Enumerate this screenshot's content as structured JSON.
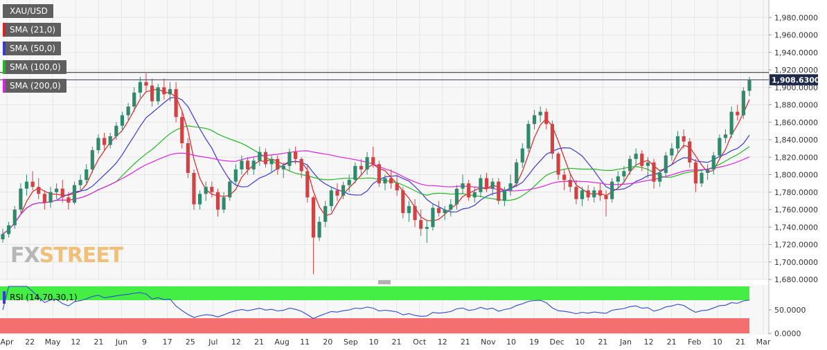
{
  "symbol": "XAU/USD",
  "logo": {
    "left": "FX",
    "right": "STREET"
  },
  "legend": [
    {
      "label": "XAU/USD",
      "color": "#5f5f5f"
    },
    {
      "label": "SMA (21,0)",
      "color": "#e02020"
    },
    {
      "label": "SMA (50,0)",
      "color": "#3a3ad8"
    },
    {
      "label": "SMA (100,0)",
      "color": "#22b822"
    },
    {
      "label": "SMA (200,0)",
      "color": "#e020e0"
    }
  ],
  "colors": {
    "up": "#2f8a6b",
    "down": "#d24242",
    "sma21": "#e02020",
    "sma50": "#3a3ad8",
    "sma100": "#22b822",
    "sma200": "#e020e0",
    "rsi": "#2a4bd0",
    "rsi_overbought": "#44ee44",
    "rsi_oversold": "#f47070",
    "grid": "#e6e6e6"
  },
  "price_axis": {
    "min": 1680,
    "max": 2000,
    "ticks": [
      "1,980.0000",
      "1,960.0000",
      "1,940.0000",
      "1,920.0000",
      "1,900.0000",
      "1,880.0000",
      "1,860.0000",
      "1,840.0000",
      "1,820.0000",
      "1,800.0000",
      "1,780.0000",
      "1,760.0000",
      "1,740.0000",
      "1,720.0000",
      "1,700.0000",
      "1,680.0000"
    ]
  },
  "last_price": {
    "label": "1,908.6300",
    "value": 1908.63
  },
  "resistance_level": 1917,
  "rsi_panel": {
    "label": "RSI (14,70,30,1)",
    "ticks": [
      "50.0000",
      "0.0000"
    ],
    "overbought": 70,
    "oversold": 30
  },
  "x_axis_labels": [
    "Apr",
    "22",
    "May",
    "12",
    "21",
    "Jun",
    "9",
    "17",
    "25",
    "Jul",
    "12",
    "21",
    "Aug",
    "11",
    "20",
    "Sep",
    "10",
    "21",
    "Oct",
    "12",
    "21",
    "Nov",
    "10",
    "19",
    "Dec",
    "10",
    "21",
    "Jan",
    "12",
    "21",
    "Feb",
    "10",
    "21",
    "Mar"
  ],
  "chart_data": {
    "type": "candlestick",
    "title": "XAU/USD",
    "ylim": [
      1680,
      2000
    ],
    "ohlc": [
      [
        1726,
        1738,
        1722,
        1732
      ],
      [
        1732,
        1746,
        1728,
        1742
      ],
      [
        1742,
        1764,
        1738,
        1760
      ],
      [
        1760,
        1790,
        1756,
        1784
      ],
      [
        1784,
        1800,
        1776,
        1792
      ],
      [
        1792,
        1804,
        1782,
        1786
      ],
      [
        1786,
        1796,
        1772,
        1778
      ],
      [
        1778,
        1782,
        1760,
        1768
      ],
      [
        1768,
        1786,
        1762,
        1780
      ],
      [
        1780,
        1790,
        1772,
        1784
      ],
      [
        1784,
        1794,
        1768,
        1774
      ],
      [
        1774,
        1780,
        1760,
        1768
      ],
      [
        1768,
        1792,
        1766,
        1788
      ],
      [
        1788,
        1800,
        1782,
        1794
      ],
      [
        1794,
        1812,
        1790,
        1806
      ],
      [
        1806,
        1832,
        1802,
        1828
      ],
      [
        1828,
        1846,
        1824,
        1842
      ],
      [
        1842,
        1848,
        1828,
        1834
      ],
      [
        1834,
        1848,
        1830,
        1844
      ],
      [
        1844,
        1860,
        1840,
        1856
      ],
      [
        1856,
        1872,
        1850,
        1868
      ],
      [
        1868,
        1882,
        1862,
        1878
      ],
      [
        1878,
        1900,
        1872,
        1894
      ],
      [
        1894,
        1912,
        1888,
        1906
      ],
      [
        1906,
        1916,
        1896,
        1902
      ],
      [
        1902,
        1910,
        1878,
        1884
      ],
      [
        1884,
        1904,
        1880,
        1900
      ],
      [
        1900,
        1910,
        1886,
        1892
      ],
      [
        1892,
        1906,
        1884,
        1898
      ],
      [
        1898,
        1906,
        1860,
        1866
      ],
      [
        1866,
        1872,
        1830,
        1836
      ],
      [
        1836,
        1842,
        1796,
        1802
      ],
      [
        1802,
        1806,
        1760,
        1766
      ],
      [
        1766,
        1782,
        1760,
        1778
      ],
      [
        1778,
        1792,
        1770,
        1786
      ],
      [
        1786,
        1792,
        1774,
        1780
      ],
      [
        1780,
        1784,
        1752,
        1760
      ],
      [
        1760,
        1780,
        1756,
        1774
      ],
      [
        1774,
        1796,
        1770,
        1792
      ],
      [
        1792,
        1812,
        1788,
        1806
      ],
      [
        1806,
        1822,
        1800,
        1816
      ],
      [
        1816,
        1820,
        1800,
        1806
      ],
      [
        1806,
        1820,
        1800,
        1816
      ],
      [
        1816,
        1832,
        1810,
        1826
      ],
      [
        1826,
        1830,
        1808,
        1812
      ],
      [
        1812,
        1822,
        1802,
        1818
      ],
      [
        1818,
        1822,
        1800,
        1806
      ],
      [
        1806,
        1814,
        1796,
        1810
      ],
      [
        1810,
        1830,
        1804,
        1826
      ],
      [
        1826,
        1832,
        1812,
        1818
      ],
      [
        1818,
        1820,
        1796,
        1804
      ],
      [
        1804,
        1812,
        1768,
        1774
      ],
      [
        1774,
        1776,
        1686,
        1728
      ],
      [
        1728,
        1752,
        1724,
        1746
      ],
      [
        1746,
        1770,
        1740,
        1764
      ],
      [
        1764,
        1786,
        1758,
        1782
      ],
      [
        1782,
        1790,
        1770,
        1776
      ],
      [
        1776,
        1792,
        1772,
        1788
      ],
      [
        1788,
        1800,
        1780,
        1794
      ],
      [
        1794,
        1814,
        1790,
        1810
      ],
      [
        1810,
        1818,
        1798,
        1806
      ],
      [
        1806,
        1826,
        1800,
        1820
      ],
      [
        1820,
        1832,
        1808,
        1812
      ],
      [
        1812,
        1816,
        1786,
        1790
      ],
      [
        1790,
        1800,
        1782,
        1796
      ],
      [
        1796,
        1806,
        1784,
        1790
      ],
      [
        1790,
        1800,
        1776,
        1782
      ],
      [
        1782,
        1786,
        1750,
        1756
      ],
      [
        1756,
        1770,
        1746,
        1764
      ],
      [
        1764,
        1772,
        1740,
        1748
      ],
      [
        1748,
        1760,
        1730,
        1738
      ],
      [
        1738,
        1748,
        1722,
        1740
      ],
      [
        1740,
        1766,
        1736,
        1762
      ],
      [
        1762,
        1770,
        1752,
        1756
      ],
      [
        1756,
        1764,
        1748,
        1760
      ],
      [
        1760,
        1772,
        1752,
        1766
      ],
      [
        1766,
        1788,
        1760,
        1784
      ],
      [
        1784,
        1800,
        1778,
        1790
      ],
      [
        1790,
        1794,
        1770,
        1774
      ],
      [
        1774,
        1786,
        1768,
        1780
      ],
      [
        1780,
        1800,
        1774,
        1796
      ],
      [
        1796,
        1802,
        1780,
        1784
      ],
      [
        1784,
        1796,
        1776,
        1792
      ],
      [
        1792,
        1796,
        1766,
        1770
      ],
      [
        1770,
        1786,
        1764,
        1782
      ],
      [
        1782,
        1800,
        1776,
        1790
      ],
      [
        1790,
        1818,
        1786,
        1814
      ],
      [
        1814,
        1836,
        1808,
        1830
      ],
      [
        1830,
        1862,
        1826,
        1858
      ],
      [
        1858,
        1874,
        1852,
        1868
      ],
      [
        1868,
        1878,
        1860,
        1872
      ],
      [
        1872,
        1876,
        1852,
        1858
      ],
      [
        1858,
        1862,
        1818,
        1824
      ],
      [
        1824,
        1826,
        1794,
        1800
      ],
      [
        1800,
        1806,
        1782,
        1794
      ],
      [
        1794,
        1802,
        1780,
        1786
      ],
      [
        1786,
        1794,
        1766,
        1772
      ],
      [
        1772,
        1786,
        1764,
        1782
      ],
      [
        1782,
        1788,
        1770,
        1774
      ],
      [
        1774,
        1786,
        1768,
        1782
      ],
      [
        1782,
        1790,
        1770,
        1776
      ],
      [
        1776,
        1782,
        1752,
        1772
      ],
      [
        1772,
        1796,
        1768,
        1792
      ],
      [
        1792,
        1804,
        1784,
        1798
      ],
      [
        1798,
        1810,
        1790,
        1804
      ],
      [
        1804,
        1822,
        1800,
        1818
      ],
      [
        1818,
        1830,
        1810,
        1824
      ],
      [
        1824,
        1828,
        1804,
        1810
      ],
      [
        1810,
        1820,
        1796,
        1814
      ],
      [
        1814,
        1818,
        1784,
        1792
      ],
      [
        1792,
        1806,
        1786,
        1802
      ],
      [
        1802,
        1826,
        1798,
        1822
      ],
      [
        1822,
        1836,
        1816,
        1830
      ],
      [
        1830,
        1850,
        1824,
        1844
      ],
      [
        1844,
        1852,
        1830,
        1838
      ],
      [
        1838,
        1842,
        1808,
        1814
      ],
      [
        1814,
        1818,
        1780,
        1790
      ],
      [
        1790,
        1806,
        1786,
        1802
      ],
      [
        1802,
        1812,
        1794,
        1806
      ],
      [
        1806,
        1826,
        1800,
        1822
      ],
      [
        1822,
        1846,
        1818,
        1842
      ],
      [
        1842,
        1852,
        1836,
        1846
      ],
      [
        1846,
        1878,
        1842,
        1872
      ],
      [
        1872,
        1880,
        1862,
        1868
      ],
      [
        1868,
        1900,
        1864,
        1896
      ],
      [
        1896,
        1912,
        1890,
        1908
      ]
    ]
  }
}
